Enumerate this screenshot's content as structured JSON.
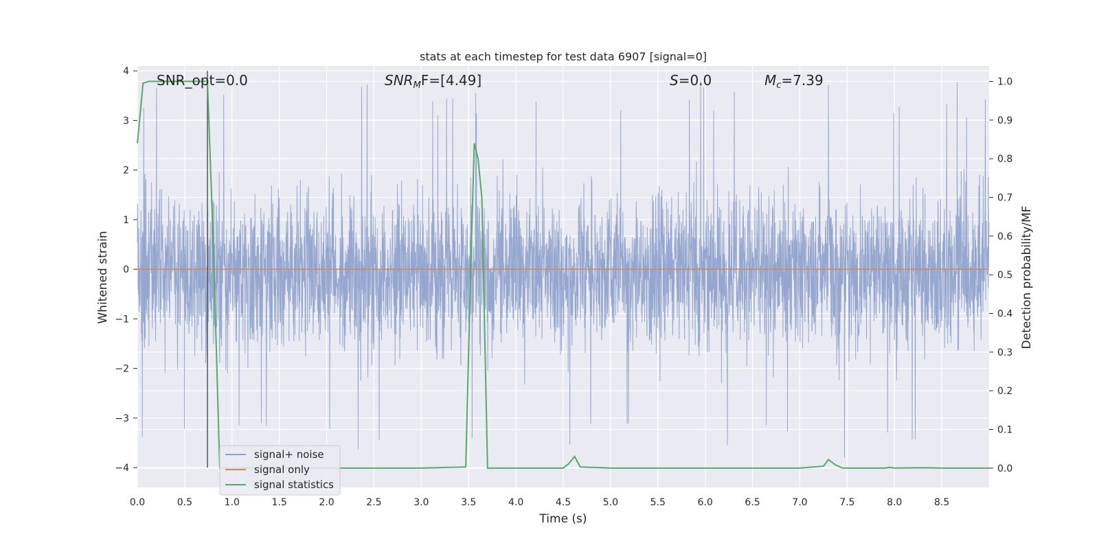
{
  "chart_data": {
    "type": "line",
    "title": "stats at each timestep for test data 6907 [signal=0]",
    "xlabel": "Time (s)",
    "ylabel": "Whitened strain",
    "y2label": "Detection probability/MF",
    "xlim": [
      0.0,
      9.0
    ],
    "ylim": [
      -4.4,
      4.1
    ],
    "y2lim": [
      -0.05,
      1.04
    ],
    "xticks": [
      "0.0",
      "0.5",
      "1.0",
      "1.5",
      "2.0",
      "2.5",
      "3.0",
      "3.5",
      "4.0",
      "4.5",
      "5.0",
      "5.5",
      "6.0",
      "6.5",
      "7.0",
      "7.5",
      "8.0",
      "8.5"
    ],
    "yticks": [
      "4",
      "3",
      "2",
      "1",
      "0",
      "−1",
      "−2",
      "−3",
      "−4"
    ],
    "y2ticks": [
      "1.0",
      "0.9",
      "0.8",
      "0.7",
      "0.6",
      "0.5",
      "0.4",
      "0.3",
      "0.2",
      "0.1",
      "0.0"
    ],
    "grid": true,
    "legend_position": "lower-left",
    "annotations": {
      "snr_opt": "SNR_opt=0.0",
      "snr_mf_main": "SNR",
      "snr_mf_sub": "M",
      "snr_mf_rest": "F=[4.49]",
      "s_main": "S",
      "s_rest": "=0.0",
      "mc_main": "M",
      "mc_sub": "c",
      "mc_rest": "=7.39"
    },
    "marker_time": 0.74,
    "series": [
      {
        "name": "signal+ noise",
        "color": "#8da0cb",
        "axis": "left",
        "description": "dense whitened noise, roughly within ±2 with peaks to about ±3.8",
        "envelope": {
          "typical_min": -1.7,
          "typical_max": 1.5,
          "peak_min": -3.8,
          "peak_max": 3.8
        }
      },
      {
        "name": "signal only",
        "color": "#dd8452",
        "axis": "left",
        "x": [
          0.0,
          9.0
        ],
        "y": [
          0.0,
          0.0
        ]
      },
      {
        "name": "signal statistics",
        "color": "#55a868",
        "axis": "right",
        "x": [
          0.0,
          0.06,
          0.12,
          0.2,
          0.3,
          0.4,
          0.5,
          0.6,
          0.7,
          0.74,
          0.8,
          0.87,
          0.95,
          1.05,
          2.0,
          3.0,
          3.47,
          3.52,
          3.56,
          3.6,
          3.64,
          3.7,
          4.0,
          4.5,
          4.56,
          4.62,
          4.68,
          5.0,
          6.0,
          7.0,
          7.25,
          7.3,
          7.38,
          7.45,
          7.7,
          7.9,
          7.95,
          8.0,
          8.3,
          8.5,
          9.0
        ],
        "y": [
          0.84,
          0.995,
          1.0,
          1.0,
          1.0,
          1.0,
          1.0,
          1.0,
          1.0,
          1.0,
          0.6,
          0.0,
          0.0,
          0.0,
          0.0,
          0.0,
          0.003,
          0.5,
          0.84,
          0.8,
          0.7,
          0.0,
          0.0,
          0.0,
          0.012,
          0.03,
          0.003,
          0.0,
          0.0,
          0.0,
          0.005,
          0.022,
          0.008,
          0.0,
          0.0,
          0.0,
          0.002,
          0.0,
          0.001,
          0.0,
          0.0
        ]
      }
    ]
  }
}
